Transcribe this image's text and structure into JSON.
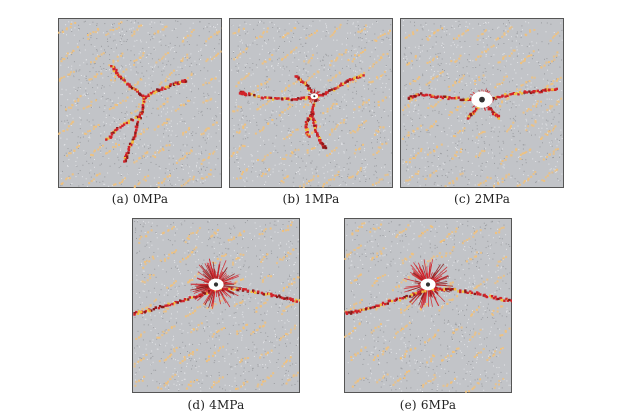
{
  "figure": {
    "panels": [
      {
        "caption": "(a) 0MPa",
        "pressure_mpa": 0,
        "crack_pattern": "three-branch"
      },
      {
        "caption": "(b) 1MPa",
        "pressure_mpa": 1,
        "crack_pattern": "three-branch-horizontal-bias"
      },
      {
        "caption": "(c) 2MPa",
        "pressure_mpa": 2,
        "crack_pattern": "horizontal"
      },
      {
        "caption": "(d) 4MPa",
        "pressure_mpa": 4,
        "crack_pattern": "horizontal-with-damage-zone"
      },
      {
        "caption": "(e) 6MPa",
        "pressure_mpa": 6,
        "crack_pattern": "horizontal-with-damage-zone"
      }
    ],
    "colors": {
      "matrix": "#c2c4c8",
      "matrix_dark": "#9a9ca0",
      "aggregate": "#f2c17a",
      "crack_red": "#d2232a",
      "crack_dark": "#8b1a1a",
      "crack_yellow": "#f0c040",
      "border": "#555555"
    }
  }
}
